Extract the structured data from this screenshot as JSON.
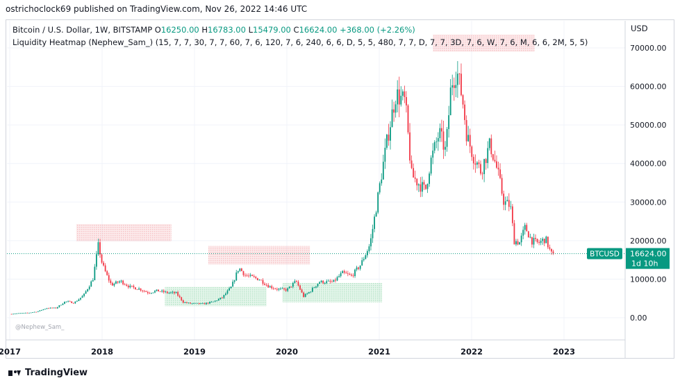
{
  "header": {
    "published_line": "ostrichoclock69 published on TradingView.com, Nov 26, 2022 14:46 UTC"
  },
  "legend": {
    "symbol_line": "Bitcoin / U.S. Dollar, 1W, BITSTAMP",
    "open_label": "O",
    "open_value": "16250.00",
    "high_label": "H",
    "high_value": "16783.00",
    "low_label": "L",
    "low_value": "15479.00",
    "close_label": "C",
    "close_value": "16624.00",
    "change": "+368.00 (+2.26%)",
    "indicator_line": "Liquidity Heatmap (Nephew_Sam_) (15, 7, 7, 30, 7, 7, 60, 7, 6, 120, 7, 6, 240, 6, 6, D, 5, 5, 480, 7, 7, D, 7, 7, 3D, 7, 6, W, 7, 6, M, 6, 6, 2M, 5, 5)"
  },
  "price_scale": {
    "currency": "USD",
    "ticks": [
      "70000.00",
      "60000.00",
      "50000.00",
      "40000.00",
      "30000.00",
      "20000.00",
      "10000.00",
      "0.00"
    ]
  },
  "time_axis": {
    "labels": [
      "2017",
      "2018",
      "2019",
      "2020",
      "2021",
      "2022",
      "2023"
    ]
  },
  "last_price_tag": {
    "symbol": "BTCUSD",
    "price": "16624.00",
    "countdown": "1d 10h"
  },
  "watermark": "@Nephew_Sam_",
  "footer": {
    "brand": "TradingView"
  },
  "colors": {
    "up": "#089981",
    "down": "#f23645",
    "grid": "#f0f3fa",
    "supply_zone": "#f7c5c9",
    "demand_zone": "#b7e4c7",
    "tag": "#089981"
  },
  "chart_data": {
    "type": "candlestick",
    "series_name": "BTCUSD",
    "timeframe": "1W",
    "ylim": [
      -2000,
      73000
    ],
    "xlim": [
      2017.0,
      2023.1
    ],
    "weekly_closes": [
      [
        2017.0,
        960
      ],
      [
        2017.1,
        1150
      ],
      [
        2017.2,
        1250
      ],
      [
        2017.3,
        1600
      ],
      [
        2017.4,
        2500
      ],
      [
        2017.5,
        2500
      ],
      [
        2017.6,
        4200
      ],
      [
        2017.7,
        3900
      ],
      [
        2017.8,
        5800
      ],
      [
        2017.9,
        10000
      ],
      [
        2017.96,
        19000
      ],
      [
        2018.0,
        14000
      ],
      [
        2018.05,
        11000
      ],
      [
        2018.1,
        8500
      ],
      [
        2018.2,
        9500
      ],
      [
        2018.3,
        8000
      ],
      [
        2018.4,
        7500
      ],
      [
        2018.5,
        6500
      ],
      [
        2018.6,
        7000
      ],
      [
        2018.7,
        6500
      ],
      [
        2018.8,
        6400
      ],
      [
        2018.88,
        4000
      ],
      [
        2018.95,
        3700
      ],
      [
        2019.1,
        3600
      ],
      [
        2019.2,
        4100
      ],
      [
        2019.3,
        5200
      ],
      [
        2019.4,
        8000
      ],
      [
        2019.48,
        13000
      ],
      [
        2019.55,
        11000
      ],
      [
        2019.7,
        10000
      ],
      [
        2019.8,
        8200
      ],
      [
        2019.9,
        7400
      ],
      [
        2020.0,
        7200
      ],
      [
        2020.1,
        9500
      ],
      [
        2020.18,
        5500
      ],
      [
        2020.25,
        6800
      ],
      [
        2020.35,
        9300
      ],
      [
        2020.5,
        9200
      ],
      [
        2020.6,
        11600
      ],
      [
        2020.7,
        10800
      ],
      [
        2020.8,
        13800
      ],
      [
        2020.9,
        19000
      ],
      [
        2020.97,
        29000
      ],
      [
        2021.03,
        38000
      ],
      [
        2021.1,
        48000
      ],
      [
        2021.18,
        58000
      ],
      [
        2021.28,
        56000
      ],
      [
        2021.35,
        37000
      ],
      [
        2021.42,
        35000
      ],
      [
        2021.5,
        33000
      ],
      [
        2021.55,
        40000
      ],
      [
        2021.65,
        48000
      ],
      [
        2021.72,
        43000
      ],
      [
        2021.78,
        61000
      ],
      [
        2021.84,
        64000
      ],
      [
        2021.9,
        57000
      ],
      [
        2021.95,
        47000
      ],
      [
        2022.02,
        42000
      ],
      [
        2022.1,
        38000
      ],
      [
        2022.2,
        45000
      ],
      [
        2022.28,
        38000
      ],
      [
        2022.35,
        30000
      ],
      [
        2022.42,
        29000
      ],
      [
        2022.46,
        20000
      ],
      [
        2022.52,
        19500
      ],
      [
        2022.58,
        23500
      ],
      [
        2022.65,
        20000
      ],
      [
        2022.72,
        19300
      ],
      [
        2022.8,
        20500
      ],
      [
        2022.86,
        16600
      ],
      [
        2022.9,
        16624
      ]
    ],
    "heatmap_zones": [
      {
        "type": "supply",
        "x_from": 2017.72,
        "x_to": 2018.75,
        "y_from": 19800,
        "y_to": 24300
      },
      {
        "type": "supply",
        "x_from": 2019.15,
        "x_to": 2020.25,
        "y_from": 13800,
        "y_to": 18600
      },
      {
        "type": "supply",
        "x_from": 2021.58,
        "x_to": 2022.68,
        "y_from": 69000,
        "y_to": 73500
      },
      {
        "type": "demand",
        "x_from": 2018.68,
        "x_to": 2019.78,
        "y_from": 3000,
        "y_to": 8000
      },
      {
        "type": "demand",
        "x_from": 2019.95,
        "x_to": 2021.03,
        "y_from": 4000,
        "y_to": 9000
      }
    ],
    "last_close": 16624
  }
}
